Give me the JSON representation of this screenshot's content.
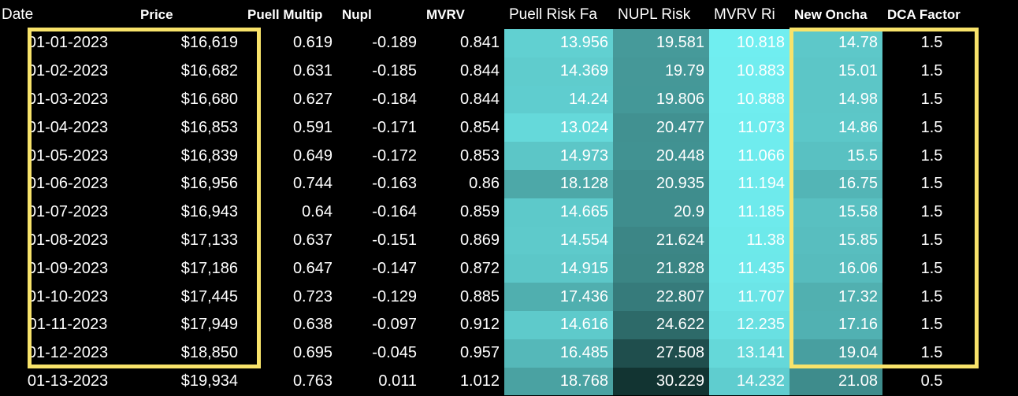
{
  "table": {
    "headers": [
      "Date",
      "Price",
      "Puell Multip",
      "Nupl",
      "MVRV",
      "Puell Risk Fa",
      "NUPL Risk",
      "MVRV Ri",
      "New Oncha",
      "DCA Factor"
    ],
    "rows": [
      [
        "01-01-2023",
        "$16,619",
        0.619,
        -0.189,
        0.841,
        13.956,
        19.581,
        10.818,
        14.78,
        1.5
      ],
      [
        "01-02-2023",
        "$16,682",
        0.631,
        -0.185,
        0.844,
        14.369,
        19.79,
        10.883,
        15.01,
        1.5
      ],
      [
        "01-03-2023",
        "$16,680",
        0.627,
        -0.184,
        0.844,
        14.24,
        19.806,
        10.888,
        14.98,
        1.5
      ],
      [
        "01-04-2023",
        "$16,853",
        0.591,
        -0.171,
        0.854,
        13.024,
        20.477,
        11.073,
        14.86,
        1.5
      ],
      [
        "01-05-2023",
        "$16,839",
        0.649,
        -0.172,
        0.853,
        14.973,
        20.448,
        11.066,
        15.5,
        1.5
      ],
      [
        "01-06-2023",
        "$16,956",
        0.744,
        -0.163,
        0.86,
        18.128,
        20.935,
        11.194,
        16.75,
        1.5
      ],
      [
        "01-07-2023",
        "$16,943",
        0.64,
        -0.164,
        0.859,
        14.665,
        20.9,
        11.185,
        15.58,
        1.5
      ],
      [
        "01-08-2023",
        "$17,133",
        0.637,
        -0.151,
        0.869,
        14.554,
        21.624,
        11.38,
        15.85,
        1.5
      ],
      [
        "01-09-2023",
        "$17,186",
        0.647,
        -0.147,
        0.872,
        14.915,
        21.828,
        11.435,
        16.06,
        1.5
      ],
      [
        "01-10-2023",
        "$17,445",
        0.723,
        -0.129,
        0.885,
        17.436,
        22.807,
        11.707,
        17.32,
        1.5
      ],
      [
        "01-11-2023",
        "$17,949",
        0.638,
        -0.097,
        0.912,
        14.616,
        24.622,
        12.235,
        17.16,
        1.5
      ],
      [
        "01-12-2023",
        "$18,850",
        0.695,
        -0.045,
        0.957,
        16.485,
        27.508,
        13.141,
        19.04,
        1.5
      ],
      [
        "01-13-2023",
        "$19,934",
        0.763,
        0.011,
        1.012,
        18.768,
        30.229,
        14.232,
        21.08,
        0.5
      ]
    ]
  }
}
